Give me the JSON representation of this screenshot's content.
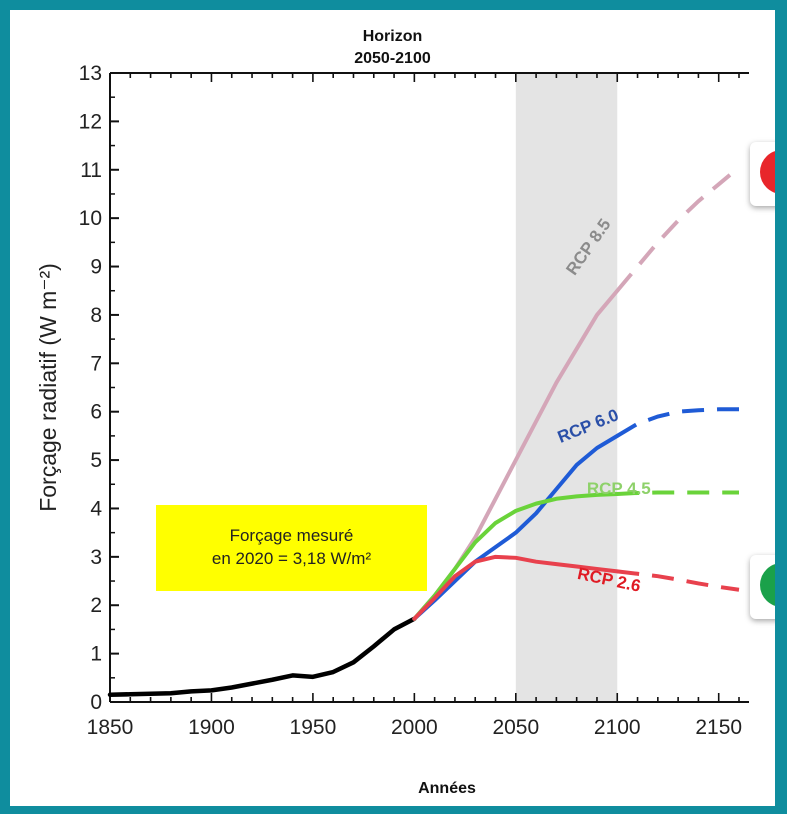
{
  "header": {
    "line1": "Horizon",
    "line2": "2050-2100"
  },
  "callout": {
    "line1": "Forçage mesuré",
    "line2": "en 2020 = 3,18 W/m²"
  },
  "faces": {
    "sad": "sad-face-icon",
    "happy": "happy-face-icon",
    "sad_color": "#e8262b",
    "happy_color": "#1aa14a"
  },
  "chart_data": {
    "type": "line",
    "xlabel": "Années",
    "ylabel": "Forçage radiatif (W m⁻²)",
    "xlim": [
      1850,
      2160
    ],
    "ylim": [
      0,
      13
    ],
    "x_ticks": [
      "1850",
      "1900",
      "1950",
      "2000",
      "2050",
      "2100",
      "2150"
    ],
    "y_ticks": [
      "0",
      "1",
      "2",
      "3",
      "4",
      "5",
      "6",
      "7",
      "8",
      "9",
      "10",
      "11",
      "12",
      "13"
    ],
    "highlight_band": {
      "x_start": 2050,
      "x_end": 2100,
      "color": "#e4e4e4"
    },
    "historical": {
      "color": "#000000",
      "x": [
        1850,
        1860,
        1870,
        1880,
        1890,
        1900,
        1910,
        1920,
        1930,
        1940,
        1950,
        1960,
        1970,
        1980,
        1990,
        2000
      ],
      "y": [
        0.15,
        0.16,
        0.17,
        0.18,
        0.22,
        0.24,
        0.3,
        0.38,
        0.46,
        0.55,
        0.52,
        0.62,
        0.82,
        1.15,
        1.5,
        1.72
      ]
    },
    "series": [
      {
        "name": "RCP 8.5",
        "color": "#d4a6b8",
        "label_color": "#8b8b8b",
        "x": [
          2000,
          2010,
          2020,
          2030,
          2040,
          2050,
          2060,
          2070,
          2080,
          2090,
          2100,
          2110,
          2120,
          2130,
          2140,
          2150,
          2160
        ],
        "y": [
          1.72,
          2.2,
          2.75,
          3.4,
          4.2,
          5.0,
          5.8,
          6.6,
          7.3,
          8.0,
          8.5,
          9.0,
          9.5,
          9.95,
          10.35,
          10.7,
          11.05
        ],
        "dashed_from": 2100
      },
      {
        "name": "RCP 6.0",
        "color": "#1f5bd6",
        "label_color": "#2a4fa8",
        "x": [
          2000,
          2010,
          2020,
          2030,
          2040,
          2050,
          2060,
          2070,
          2080,
          2090,
          2100,
          2110,
          2120,
          2130,
          2140,
          2150,
          2160
        ],
        "y": [
          1.72,
          2.1,
          2.5,
          2.9,
          3.2,
          3.5,
          3.9,
          4.4,
          4.9,
          5.25,
          5.5,
          5.75,
          5.9,
          6.0,
          6.03,
          6.05,
          6.05
        ],
        "dashed_from": 2100
      },
      {
        "name": "RCP 4.5",
        "color": "#6ad33a",
        "label_color": "#8ed16a",
        "x": [
          2000,
          2010,
          2020,
          2030,
          2040,
          2050,
          2060,
          2070,
          2080,
          2090,
          2100,
          2110,
          2120,
          2130,
          2140,
          2150,
          2160
        ],
        "y": [
          1.72,
          2.2,
          2.75,
          3.3,
          3.7,
          3.95,
          4.1,
          4.2,
          4.25,
          4.28,
          4.3,
          4.32,
          4.33,
          4.33,
          4.33,
          4.33,
          4.33
        ],
        "dashed_from": 2100
      },
      {
        "name": "RCP 2.6",
        "color": "#e8414d",
        "label_color": "#e01b24",
        "x": [
          2000,
          2010,
          2020,
          2030,
          2040,
          2050,
          2060,
          2070,
          2080,
          2090,
          2100,
          2110,
          2120,
          2130,
          2140,
          2150,
          2160
        ],
        "y": [
          1.72,
          2.15,
          2.6,
          2.9,
          3.0,
          2.98,
          2.9,
          2.85,
          2.8,
          2.75,
          2.7,
          2.65,
          2.6,
          2.53,
          2.45,
          2.38,
          2.32
        ],
        "dashed_from": 2100
      }
    ]
  }
}
